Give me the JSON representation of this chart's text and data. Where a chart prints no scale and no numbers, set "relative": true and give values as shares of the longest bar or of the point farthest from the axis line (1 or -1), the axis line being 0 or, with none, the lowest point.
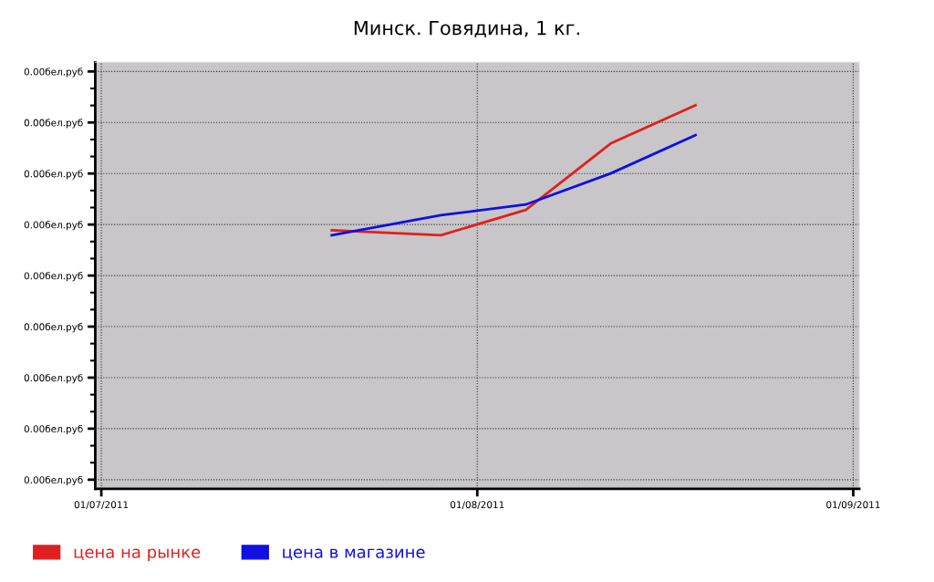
{
  "chart_data": {
    "type": "line",
    "title": "Минск. Говядина, 1 кг.",
    "x": [
      "2011-07-20",
      "2011-07-29",
      "2011-08-05",
      "2011-08-12",
      "2011-08-19"
    ],
    "series": [
      {
        "name": "цена на рынке",
        "color": "#e02020",
        "values": [
          0.674,
          0.661,
          0.727,
          0.9,
          1.0
        ]
      },
      {
        "name": "цена в магазине",
        "color": "#1010e0",
        "values": [
          0.661,
          0.713,
          0.741,
          0.822,
          0.922
        ]
      }
    ],
    "relative": true,
    "annotations": [
      "0.00бел.руб",
      "0.00бел.руб",
      "0.00бел.руб",
      "0.00бел.руб",
      "0.00бел.руб",
      "0.00бел.руб",
      "0.00бел.руб",
      "0.00бел.руб",
      "0.00бел.руб"
    ],
    "xlim": [
      "2011-06-30T12:00",
      "2011-09-01T12:00"
    ],
    "xticks": [
      {
        "value": "2011-07-01",
        "label": "01/07/2011"
      },
      {
        "value": "2011-08-01",
        "label": "01/08/2011"
      },
      {
        "value": "2011-09-01",
        "label": "01/09/2011"
      }
    ],
    "grid": true,
    "legend": "bottom",
    "marker": "none",
    "line_style": "solid"
  }
}
